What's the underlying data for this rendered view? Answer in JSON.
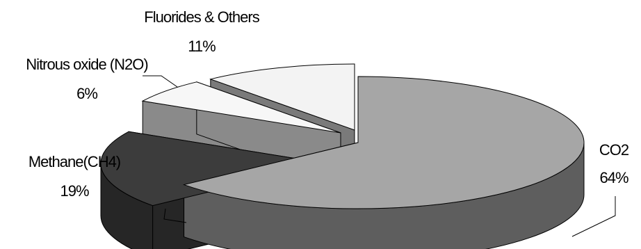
{
  "chart_data": {
    "type": "pie",
    "style": "3d-exploded",
    "slices": [
      {
        "label": "CO2",
        "value": 64,
        "pct_label": "64%",
        "color": "#a6a6a6",
        "side_color": "#5e5e5e"
      },
      {
        "label": "Methane(CH4)",
        "value": 19,
        "pct_label": "19%",
        "color": "#3c3c3c",
        "side_color": "#262626"
      },
      {
        "label": "Nitrous oxide (N2O)",
        "value": 6,
        "pct_label": "6%",
        "color": "#f7f7f7",
        "side_color": "#8a8a8a"
      },
      {
        "label": "Fluorides & Others",
        "value": 11,
        "pct_label": "11%",
        "color": "#f3f3f3",
        "side_color": "#7a7a7a"
      }
    ]
  }
}
